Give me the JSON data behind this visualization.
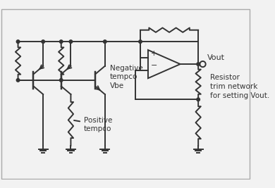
{
  "bg_color": "#f2f2f2",
  "line_color": "#333333",
  "line_width": 1.4,
  "labels": {
    "negative_tempco": "Negative\ntempco\nVbe",
    "positive_tempco": "Positive\ntempco",
    "vout": "Vout",
    "resistor_trim": "Resistor\ntrim network\nfor setting Vout."
  },
  "font_size": 7.5
}
